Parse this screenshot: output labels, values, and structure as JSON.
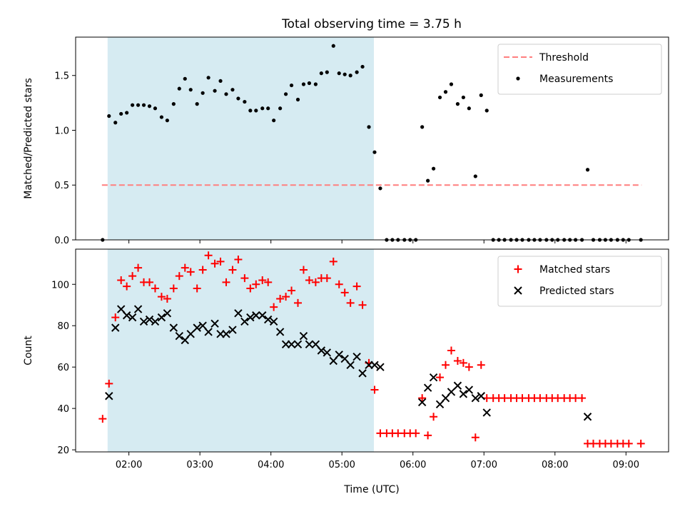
{
  "chart_data": {
    "title": "Total observing time = 3.75 h",
    "xlabel": "Time (UTC)",
    "x_unit": "hours (UTC)",
    "xlim": [
      1.25,
      9.6
    ],
    "x_ticks": [
      2,
      3,
      4,
      5,
      6,
      7,
      8,
      9
    ],
    "x_tick_labels": [
      "02:00",
      "03:00",
      "04:00",
      "05:00",
      "06:00",
      "07:00",
      "08:00",
      "09:00"
    ],
    "shaded_interval": {
      "x": [
        1.7,
        5.45
      ],
      "color": "#add8e6"
    },
    "panels": [
      {
        "type": "scatter",
        "ylabel": "Matched/Predicted stars",
        "ylim": [
          0,
          1.85
        ],
        "y_ticks": [
          0.0,
          0.5,
          1.0,
          1.5
        ],
        "y_tick_labels": [
          "0.0",
          "0.5",
          "1.0",
          "1.5"
        ],
        "legend_position": "upper right",
        "threshold": {
          "name": "Threshold",
          "y": 0.5,
          "x": [
            1.62,
            9.22
          ],
          "color": "#ff7f7f",
          "style": "dashed"
        },
        "series": [
          {
            "name": "Measurements",
            "marker": "dot",
            "color": "#000000",
            "x": [
              1.63,
              1.72,
              1.81,
              1.89,
              1.97,
              2.05,
              2.13,
              2.21,
              2.29,
              2.37,
              2.46,
              2.54,
              2.63,
              2.71,
              2.79,
              2.87,
              2.96,
              3.04,
              3.12,
              3.21,
              3.29,
              3.37,
              3.46,
              3.54,
              3.63,
              3.71,
              3.79,
              3.88,
              3.96,
              4.04,
              4.13,
              4.21,
              4.29,
              4.38,
              4.46,
              4.54,
              4.63,
              4.71,
              4.79,
              4.88,
              4.96,
              5.04,
              5.12,
              5.21,
              5.29,
              5.38,
              5.46,
              5.54,
              5.63,
              5.71,
              5.79,
              5.88,
              5.96,
              6.04,
              6.13,
              6.21,
              6.29,
              6.38,
              6.46,
              6.54,
              6.63,
              6.71,
              6.79,
              6.88,
              6.96,
              7.04,
              7.13,
              7.21,
              7.29,
              7.38,
              7.46,
              7.54,
              7.63,
              7.71,
              7.79,
              7.88,
              7.96,
              8.04,
              8.13,
              8.21,
              8.29,
              8.38,
              8.46,
              8.54,
              8.63,
              8.71,
              8.79,
              8.88,
              8.96,
              9.04,
              9.21
            ],
            "y": [
              0.0,
              1.13,
              1.07,
              1.15,
              1.16,
              1.23,
              1.23,
              1.23,
              1.22,
              1.2,
              1.12,
              1.09,
              1.24,
              1.38,
              1.47,
              1.37,
              1.24,
              1.34,
              1.48,
              1.36,
              1.45,
              1.33,
              1.37,
              1.29,
              1.26,
              1.18,
              1.18,
              1.2,
              1.2,
              1.09,
              1.2,
              1.33,
              1.41,
              1.28,
              1.42,
              1.43,
              1.42,
              1.52,
              1.53,
              1.77,
              1.52,
              1.51,
              1.5,
              1.53,
              1.58,
              1.03,
              0.8,
              0.47,
              0.0,
              0.0,
              0.0,
              0.0,
              0.0,
              0.0,
              1.03,
              0.54,
              0.65,
              1.3,
              1.35,
              1.42,
              1.24,
              1.3,
              1.2,
              0.58,
              1.32,
              1.18,
              0.0,
              0.0,
              0.0,
              0.0,
              0.0,
              0.0,
              0.0,
              0.0,
              0.0,
              0.0,
              0.0,
              0.0,
              0.0,
              0.0,
              0.0,
              0.0,
              0.64,
              0.0,
              0.0,
              0.0,
              0.0,
              0.0,
              0.0,
              0.0,
              0.0
            ]
          }
        ]
      },
      {
        "type": "scatter",
        "ylabel": "Count",
        "ylim": [
          19,
          117
        ],
        "y_ticks": [
          20,
          40,
          60,
          80,
          100
        ],
        "y_tick_labels": [
          "20",
          "40",
          "60",
          "80",
          "100"
        ],
        "legend_position": "upper right",
        "series": [
          {
            "name": "Matched stars",
            "marker": "plus",
            "color": "#ff0000",
            "x": [
              1.63,
              1.72,
              1.81,
              1.89,
              1.97,
              2.05,
              2.13,
              2.21,
              2.29,
              2.37,
              2.46,
              2.54,
              2.63,
              2.71,
              2.79,
              2.87,
              2.96,
              3.04,
              3.12,
              3.21,
              3.29,
              3.37,
              3.46,
              3.54,
              3.63,
              3.71,
              3.79,
              3.88,
              3.96,
              4.04,
              4.13,
              4.21,
              4.29,
              4.38,
              4.46,
              4.54,
              4.63,
              4.71,
              4.79,
              4.88,
              4.96,
              5.04,
              5.12,
              5.21,
              5.29,
              5.38,
              5.46,
              5.54,
              5.63,
              5.71,
              5.79,
              5.88,
              5.96,
              6.04,
              6.13,
              6.21,
              6.29,
              6.38,
              6.46,
              6.54,
              6.63,
              6.71,
              6.79,
              6.88,
              6.96,
              7.04,
              7.13,
              7.21,
              7.29,
              7.38,
              7.46,
              7.54,
              7.63,
              7.71,
              7.79,
              7.88,
              7.96,
              8.04,
              8.13,
              8.21,
              8.29,
              8.38,
              8.46,
              8.54,
              8.63,
              8.71,
              8.79,
              8.88,
              8.96,
              9.04,
              9.21
            ],
            "y": [
              35,
              52,
              84,
              102,
              99,
              104,
              108,
              101,
              101,
              98,
              94,
              93,
              98,
              104,
              108,
              106,
              98,
              107,
              114,
              110,
              111,
              101,
              107,
              112,
              103,
              98,
              100,
              102,
              101,
              89,
              93,
              94,
              97,
              91,
              107,
              102,
              101,
              103,
              103,
              111,
              100,
              96,
              91,
              99,
              90,
              62,
              49,
              28,
              28,
              28,
              28,
              28,
              28,
              28,
              45,
              27,
              36,
              55,
              61,
              68,
              63,
              62,
              60,
              26,
              61,
              45,
              45,
              45,
              45,
              45,
              45,
              45,
              45,
              45,
              45,
              45,
              45,
              45,
              45,
              45,
              45,
              45,
              23,
              23,
              23,
              23,
              23,
              23,
              23,
              23,
              23
            ]
          },
          {
            "name": "Predicted stars",
            "marker": "x",
            "color": "#000000",
            "x": [
              1.72,
              1.81,
              1.89,
              1.97,
              2.05,
              2.13,
              2.21,
              2.29,
              2.37,
              2.46,
              2.54,
              2.63,
              2.71,
              2.79,
              2.87,
              2.96,
              3.04,
              3.12,
              3.21,
              3.29,
              3.37,
              3.46,
              3.54,
              3.63,
              3.71,
              3.79,
              3.88,
              3.96,
              4.04,
              4.13,
              4.21,
              4.29,
              4.38,
              4.46,
              4.54,
              4.63,
              4.71,
              4.79,
              4.88,
              4.96,
              5.04,
              5.12,
              5.21,
              5.29,
              5.38,
              5.46,
              5.54,
              6.13,
              6.21,
              6.29,
              6.38,
              6.46,
              6.54,
              6.63,
              6.71,
              6.79,
              6.88,
              6.96,
              7.04,
              8.46
            ],
            "y": [
              46,
              79,
              88,
              85,
              84,
              88,
              82,
              83,
              82,
              84,
              86,
              79,
              75,
              73,
              76,
              79,
              80,
              77,
              81,
              76,
              76,
              78,
              86,
              82,
              84,
              85,
              85,
              83,
              82,
              77,
              71,
              71,
              71,
              75,
              71,
              71,
              68,
              67,
              63,
              66,
              64,
              61,
              65,
              57,
              61,
              61,
              60,
              43,
              50,
              55,
              42,
              45,
              48,
              51,
              47,
              49,
              45,
              46,
              38,
              36
            ]
          }
        ]
      }
    ]
  }
}
